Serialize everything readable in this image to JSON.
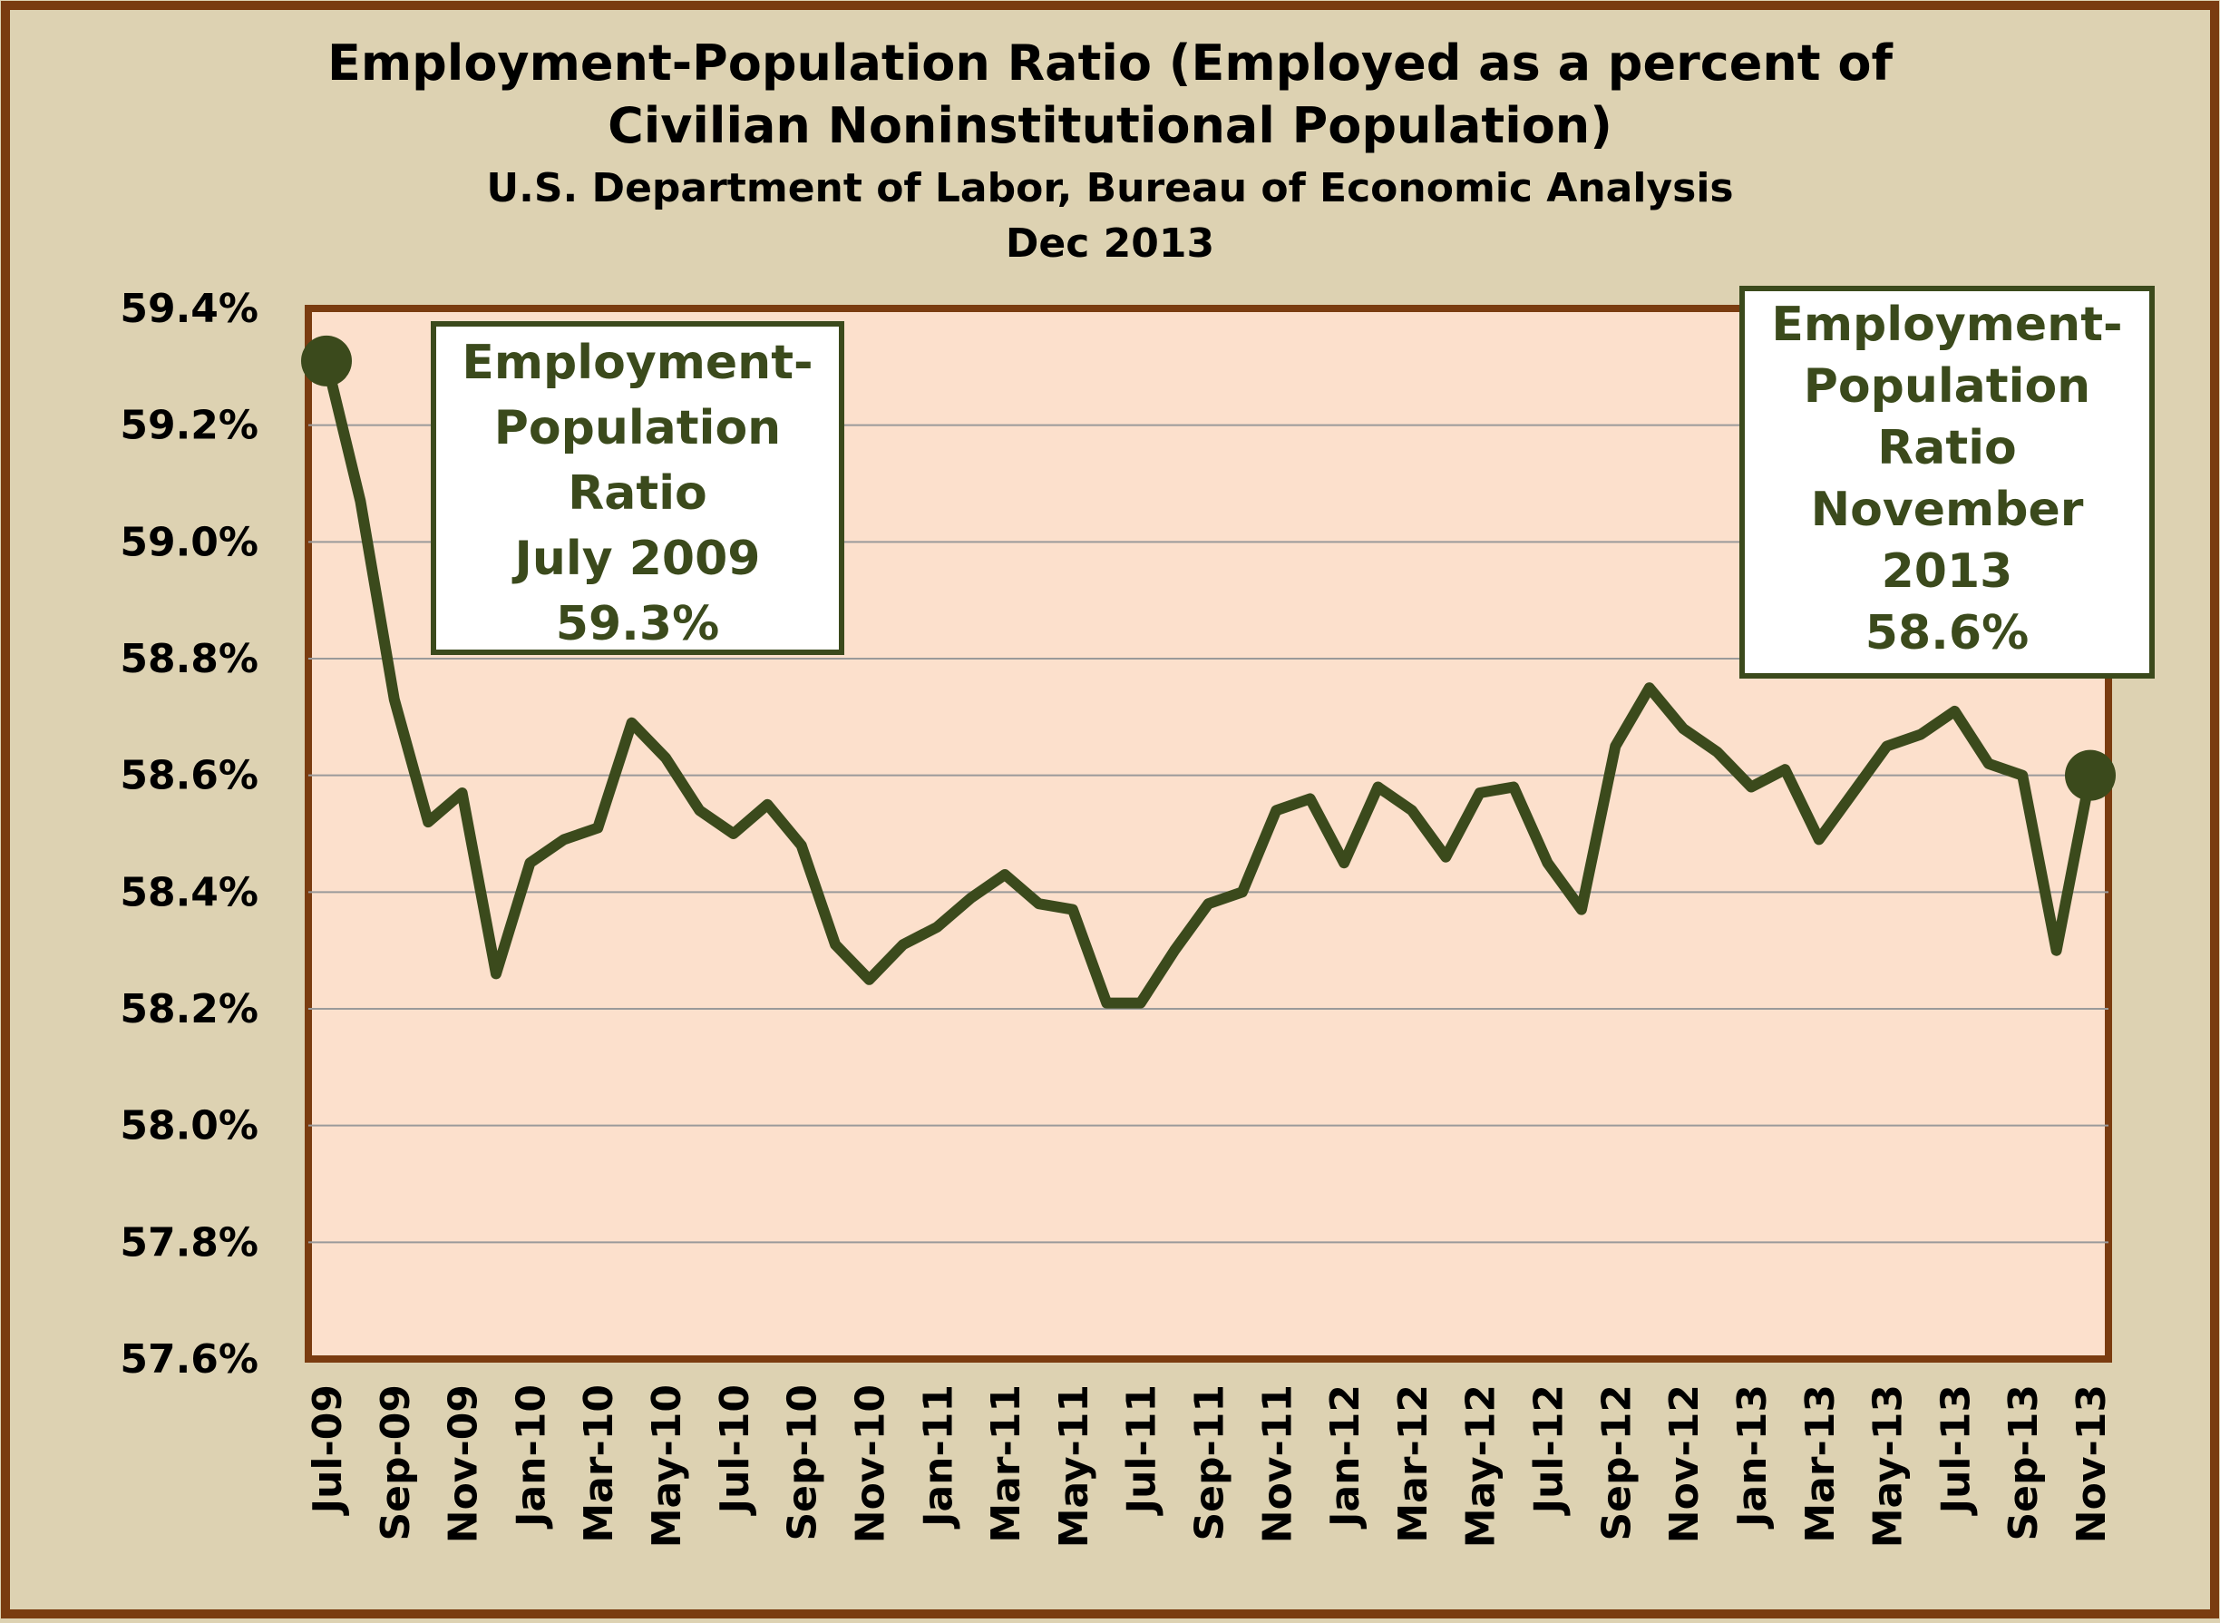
{
  "chart_data": {
    "type": "line",
    "title": "Employment-Population Ratio (Employed as a percent of",
    "title_line2": "Civilian Noninstitutional Population)",
    "subtitle": "U.S. Department  of Labor, Bureau  of Economic Analysis",
    "subtitle_line2": "Dec 2013",
    "xlabel": "",
    "ylabel": "",
    "ylim": [
      57.6,
      59.4
    ],
    "y_ticks": [
      57.6,
      57.8,
      58.0,
      58.2,
      58.4,
      58.6,
      58.8,
      59.0,
      59.2,
      59.4
    ],
    "y_tick_labels": [
      "57.6%",
      "57.8%",
      "58.0%",
      "58.2%",
      "58.4%",
      "58.6%",
      "58.8%",
      "59.0%",
      "59.2%",
      "59.4%"
    ],
    "grid": true,
    "legend": "none",
    "x_tick_labels": [
      "Jul-09",
      "Sep-09",
      "Nov-09",
      "Jan-10",
      "Mar-10",
      "May-10",
      "Jul-10",
      "Sep-10",
      "Nov-10",
      "Jan-11",
      "Mar-11",
      "May-11",
      "Jul-11",
      "Sep-11",
      "Nov-11",
      "Jan-12",
      "Mar-12",
      "May-12",
      "Jul-12",
      "Sep-12",
      "Nov-12",
      "Jan-13",
      "Mar-13",
      "May-13",
      "Jul-13",
      "Sep-13",
      "Nov-13"
    ],
    "x": [
      "Jul-09",
      "Aug-09",
      "Sep-09",
      "Oct-09",
      "Nov-09",
      "Dec-09",
      "Jan-10",
      "Feb-10",
      "Mar-10",
      "Apr-10",
      "May-10",
      "Jun-10",
      "Jul-10",
      "Aug-10",
      "Sep-10",
      "Oct-10",
      "Nov-10",
      "Dec-10",
      "Jan-11",
      "Feb-11",
      "Mar-11",
      "Apr-11",
      "May-11",
      "Jun-11",
      "Jul-11",
      "Aug-11",
      "Sep-11",
      "Oct-11",
      "Nov-11",
      "Dec-11",
      "Jan-12",
      "Feb-12",
      "Mar-12",
      "Apr-12",
      "May-12",
      "Jun-12",
      "Jul-12",
      "Aug-12",
      "Sep-12",
      "Oct-12",
      "Nov-12",
      "Dec-12",
      "Jan-13",
      "Feb-13",
      "Mar-13",
      "Apr-13",
      "May-13",
      "Jun-13",
      "Jul-13",
      "Aug-13",
      "Sep-13",
      "Oct-13",
      "Nov-13"
    ],
    "series": [
      {
        "values": [
          59.31,
          59.07,
          58.73,
          58.52,
          58.57,
          58.26,
          58.45,
          58.49,
          58.51,
          58.69,
          58.63,
          58.54,
          58.5,
          58.55,
          58.48,
          58.31,
          58.25,
          58.31,
          58.34,
          58.39,
          58.43,
          58.38,
          58.37,
          58.21,
          58.21,
          58.3,
          58.38,
          58.4,
          58.54,
          58.56,
          58.45,
          58.58,
          58.54,
          58.46,
          58.57,
          58.58,
          58.45,
          58.37,
          58.65,
          58.75,
          58.68,
          58.64,
          58.58,
          58.61,
          58.49,
          58.57,
          58.65,
          58.67,
          58.71,
          58.62,
          58.6,
          58.3,
          58.6
        ]
      }
    ],
    "annotations": [
      {
        "lines": [
          "Employment-",
          "Population",
          "Ratio",
          "July 2009",
          "59.3%"
        ],
        "point_index": 0
      },
      {
        "lines": [
          "Employment-",
          "Population",
          "Ratio",
          "November",
          "2013",
          "58.6%"
        ],
        "point_index": 52
      }
    ],
    "colors": {
      "background": "#ddd2b2",
      "plot_background": "#fce0cc",
      "border": "#7a3c10",
      "line": "#3b4a1c",
      "annotation_text": "#3b4a1c",
      "gridline": "#9a9a9a"
    }
  }
}
